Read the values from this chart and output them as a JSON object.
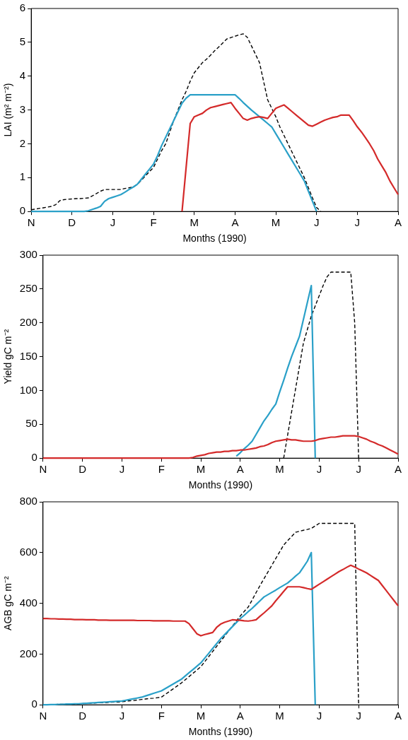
{
  "chart_data": [
    {
      "type": "line",
      "xlabel": "Months (1990)",
      "ylabel": "LAI (m² m⁻²)",
      "categories": [
        "N",
        null,
        null,
        null,
        null,
        null,
        null,
        null,
        null,
        null,
        "D",
        null,
        null,
        null,
        null,
        null,
        null,
        null,
        null,
        null,
        "J",
        null,
        null,
        null,
        null,
        null,
        null,
        null,
        null,
        null,
        "F",
        null,
        null,
        null,
        null,
        null,
        null,
        null,
        null,
        null,
        "M",
        null,
        null,
        null,
        null,
        null,
        null,
        null,
        null,
        null,
        "A",
        null,
        null,
        null,
        null,
        null,
        null,
        null,
        null,
        null,
        "M",
        null,
        null,
        null,
        null,
        null,
        null,
        null,
        null,
        null,
        "J",
        null,
        null,
        null,
        null,
        null,
        null,
        null,
        null,
        null,
        "J",
        null,
        null,
        null,
        null,
        null,
        null,
        null,
        null,
        null,
        "A"
      ],
      "ylim": [
        0,
        6
      ],
      "yticks": [
        0,
        1,
        2,
        3,
        4,
        5,
        6
      ],
      "grid": false,
      "legend": false,
      "series": [
        {
          "color": "#d42a2a",
          "line_style": "solid",
          "values": [
            null,
            null,
            null,
            null,
            null,
            null,
            null,
            null,
            null,
            null,
            null,
            null,
            null,
            null,
            null,
            null,
            null,
            null,
            null,
            null,
            null,
            null,
            null,
            null,
            null,
            null,
            null,
            null,
            null,
            null,
            null,
            null,
            null,
            null,
            null,
            null,
            null,
            0,
            1.3,
            2.6,
            2.8,
            2.85,
            2.9,
            3.0,
            3.07,
            3.1,
            3.13,
            3.16,
            3.19,
            3.22,
            3.05,
            2.9,
            2.75,
            2.7,
            2.75,
            2.78,
            2.8,
            2.78,
            2.75,
            2.9,
            3.05,
            3.1,
            3.15,
            3.05,
            2.95,
            2.85,
            2.75,
            2.65,
            2.55,
            2.52,
            2.58,
            2.64,
            2.7,
            2.74,
            2.78,
            2.8,
            2.85,
            2.85,
            2.85,
            2.68,
            2.5,
            2.35,
            2.18,
            2.0,
            1.8,
            1.55,
            1.35,
            1.15,
            0.9,
            0.7,
            0.5
          ]
        },
        {
          "color": "#2aa0c8",
          "line_style": "solid",
          "values": [
            0,
            0,
            0,
            0,
            0,
            0,
            0,
            0,
            0,
            0,
            0,
            0,
            0,
            0,
            0.02,
            0.06,
            0.1,
            0.15,
            0.3,
            0.38,
            0.42,
            0.46,
            0.5,
            0.57,
            0.65,
            0.72,
            0.8,
            0.95,
            1.1,
            1.25,
            1.4,
            1.65,
            1.95,
            2.2,
            2.45,
            2.7,
            2.95,
            3.2,
            3.35,
            3.45,
            3.45,
            3.45,
            3.45,
            3.45,
            3.45,
            3.45,
            3.45,
            3.45,
            3.45,
            3.45,
            3.45,
            3.34,
            3.22,
            3.11,
            3.0,
            2.9,
            2.8,
            2.7,
            2.6,
            2.5,
            2.3,
            2.1,
            1.9,
            1.7,
            1.5,
            1.3,
            1.1,
            0.9,
            0.6,
            0.3,
            0,
            null,
            null,
            null,
            null,
            null,
            null,
            null,
            null,
            null,
            null,
            null,
            null,
            null,
            null,
            null,
            null,
            null,
            null,
            null,
            null
          ]
        },
        {
          "color": "#000000",
          "line_style": "dashed",
          "values": [
            0.05,
            0.07,
            0.09,
            0.11,
            0.13,
            0.15,
            0.2,
            0.32,
            0.35,
            0.36,
            0.37,
            0.38,
            0.38,
            0.39,
            0.4,
            0.46,
            0.53,
            0.6,
            0.65,
            0.65,
            0.65,
            0.65,
            0.65,
            0.68,
            0.7,
            0.72,
            0.8,
            0.92,
            1.05,
            1.18,
            1.3,
            1.55,
            1.8,
            2.0,
            2.35,
            2.7,
            3.0,
            3.3,
            3.55,
            3.85,
            4.1,
            4.25,
            4.4,
            4.5,
            4.62,
            4.75,
            4.86,
            4.98,
            5.1,
            5.14,
            5.18,
            5.22,
            5.25,
            5.15,
            4.9,
            4.65,
            4.4,
            3.85,
            3.3,
            3.05,
            2.8,
            2.5,
            2.25,
            2.0,
            1.75,
            1.5,
            1.25,
            1.0,
            0.7,
            0.4,
            0.12,
            0,
            null,
            null,
            null,
            null,
            null,
            null,
            null,
            null,
            null,
            null,
            null,
            null,
            null,
            null,
            null,
            null,
            null,
            null,
            null
          ]
        }
      ]
    },
    {
      "type": "line",
      "xlabel": "Months (1990)",
      "ylabel": "Yield gC m⁻²",
      "categories": [
        "N",
        null,
        null,
        null,
        null,
        null,
        null,
        null,
        null,
        null,
        "D",
        null,
        null,
        null,
        null,
        null,
        null,
        null,
        null,
        null,
        "J",
        null,
        null,
        null,
        null,
        null,
        null,
        null,
        null,
        null,
        "F",
        null,
        null,
        null,
        null,
        null,
        null,
        null,
        null,
        null,
        "M",
        null,
        null,
        null,
        null,
        null,
        null,
        null,
        null,
        null,
        "A",
        null,
        null,
        null,
        null,
        null,
        null,
        null,
        null,
        null,
        "M",
        null,
        null,
        null,
        null,
        null,
        null,
        null,
        null,
        null,
        "J",
        null,
        null,
        null,
        null,
        null,
        null,
        null,
        null,
        null,
        "J",
        null,
        null,
        null,
        null,
        null,
        null,
        null,
        null,
        null,
        "A"
      ],
      "ylim": [
        0,
        300
      ],
      "yticks": [
        0,
        50,
        100,
        150,
        200,
        250,
        300
      ],
      "grid": false,
      "legend": false,
      "series": [
        {
          "color": "#d42a2a",
          "line_style": "solid",
          "values": [
            0,
            0,
            0,
            0,
            0,
            0,
            0,
            0,
            0,
            0,
            0,
            0,
            0,
            0,
            0,
            0,
            0,
            0,
            0,
            0,
            0,
            0,
            0,
            0,
            0,
            0,
            0,
            0,
            0,
            0,
            0,
            0,
            0,
            0,
            0,
            0,
            0,
            0,
            1,
            3,
            4,
            5,
            7,
            8,
            9,
            9,
            10,
            10,
            11,
            11,
            12,
            12,
            13,
            14,
            15,
            17,
            18,
            20,
            23,
            25,
            26,
            27,
            28,
            27,
            27,
            26,
            25,
            25,
            25,
            26,
            28,
            29,
            30,
            31,
            31,
            32,
            33,
            33,
            33,
            33,
            32,
            30,
            28,
            25,
            23,
            20,
            18,
            15,
            12,
            9,
            6
          ]
        },
        {
          "color": "#2aa0c8",
          "line_style": "solid",
          "values": [
            null,
            null,
            null,
            null,
            null,
            null,
            null,
            null,
            null,
            null,
            null,
            null,
            null,
            null,
            null,
            null,
            null,
            null,
            null,
            null,
            null,
            null,
            null,
            null,
            null,
            null,
            null,
            null,
            null,
            null,
            null,
            null,
            null,
            null,
            null,
            null,
            null,
            null,
            null,
            null,
            null,
            null,
            null,
            null,
            null,
            null,
            null,
            null,
            null,
            3,
            8,
            14,
            19,
            25,
            35,
            45,
            55,
            63,
            72,
            80,
            98,
            115,
            133,
            150,
            165,
            180,
            205,
            230,
            255,
            0,
            null,
            null,
            null,
            null,
            null,
            null,
            null,
            null,
            null,
            null,
            null,
            null,
            null,
            null,
            null,
            null,
            null,
            null,
            null,
            null,
            null
          ]
        },
        {
          "color": "#000000",
          "line_style": "dashed",
          "values": [
            null,
            null,
            null,
            null,
            null,
            null,
            null,
            null,
            null,
            null,
            null,
            null,
            null,
            null,
            null,
            null,
            null,
            null,
            null,
            null,
            null,
            null,
            null,
            null,
            null,
            null,
            null,
            null,
            null,
            null,
            null,
            null,
            null,
            null,
            null,
            null,
            null,
            null,
            null,
            null,
            null,
            null,
            null,
            null,
            null,
            null,
            null,
            null,
            null,
            null,
            null,
            null,
            null,
            null,
            null,
            null,
            null,
            null,
            null,
            null,
            null,
            0,
            34,
            68,
            102,
            136,
            170,
            190,
            210,
            225,
            240,
            255,
            268,
            275,
            275,
            275,
            275,
            275,
            275,
            200,
            0,
            null,
            null,
            null,
            null,
            null,
            null,
            null,
            null,
            null,
            null
          ]
        }
      ]
    },
    {
      "type": "line",
      "xlabel": "Months (1990)",
      "ylabel": "AGB gC m⁻²",
      "categories": [
        "N",
        null,
        null,
        null,
        null,
        null,
        null,
        null,
        null,
        null,
        "D",
        null,
        null,
        null,
        null,
        null,
        null,
        null,
        null,
        null,
        "J",
        null,
        null,
        null,
        null,
        null,
        null,
        null,
        null,
        null,
        "F",
        null,
        null,
        null,
        null,
        null,
        null,
        null,
        null,
        null,
        "M",
        null,
        null,
        null,
        null,
        null,
        null,
        null,
        null,
        null,
        "A",
        null,
        null,
        null,
        null,
        null,
        null,
        null,
        null,
        null,
        "M",
        null,
        null,
        null,
        null,
        null,
        null,
        null,
        null,
        null,
        "J",
        null,
        null,
        null,
        null,
        null,
        null,
        null,
        null,
        null,
        "J",
        null,
        null,
        null,
        null,
        null,
        null,
        null,
        null,
        null,
        "A"
      ],
      "ylim": [
        0,
        800
      ],
      "yticks": [
        0,
        200,
        400,
        600,
        800
      ],
      "grid": false,
      "legend": false,
      "series": [
        {
          "color": "#d42a2a",
          "line_style": "solid",
          "values": [
            340,
            340,
            339,
            339,
            338,
            338,
            337,
            337,
            336,
            336,
            336,
            335,
            335,
            335,
            334,
            334,
            334,
            333,
            333,
            333,
            333,
            333,
            333,
            333,
            332,
            332,
            332,
            332,
            331,
            331,
            331,
            331,
            331,
            330,
            330,
            330,
            330,
            320,
            300,
            280,
            272,
            277,
            281,
            285,
            305,
            318,
            325,
            330,
            335,
            334,
            333,
            331,
            330,
            332,
            335,
            349,
            362,
            376,
            390,
            410,
            428,
            447,
            465,
            465,
            465,
            465,
            462,
            458,
            455,
            465,
            475,
            485,
            495,
            505,
            515,
            525,
            533,
            542,
            550,
            543,
            535,
            528,
            520,
            510,
            500,
            490,
            470,
            450,
            430,
            410,
            390
          ]
        },
        {
          "color": "#2aa0c8",
          "line_style": "solid",
          "values": [
            0,
            0,
            1,
            1,
            2,
            2,
            3,
            3,
            4,
            4,
            5,
            6,
            7,
            8,
            9,
            10,
            11,
            12,
            13,
            14,
            15,
            18,
            21,
            24,
            27,
            30,
            35,
            40,
            45,
            50,
            55,
            64,
            73,
            82,
            91,
            100,
            113,
            126,
            139,
            152,
            165,
            184,
            203,
            222,
            241,
            260,
            276,
            292,
            308,
            324,
            340,
            353,
            367,
            380,
            395,
            410,
            425,
            434,
            443,
            452,
            462,
            471,
            480,
            493,
            507,
            520,
            543,
            566,
            600,
            0,
            null,
            null,
            null,
            null,
            null,
            null,
            null,
            null,
            null,
            null,
            null,
            null,
            null,
            null,
            null,
            null,
            null,
            null,
            null,
            null,
            null
          ]
        },
        {
          "color": "#000000",
          "line_style": "dashed",
          "values": [
            0,
            0,
            1,
            1,
            2,
            2,
            3,
            3,
            4,
            4,
            5,
            6,
            6,
            7,
            8,
            8,
            9,
            10,
            11,
            11,
            12,
            14,
            16,
            17,
            19,
            21,
            23,
            25,
            26,
            28,
            30,
            41,
            52,
            63,
            74,
            85,
            98,
            111,
            124,
            137,
            150,
            170,
            190,
            210,
            230,
            250,
            270,
            290,
            310,
            330,
            350,
            368,
            385,
            413,
            442,
            470,
            497,
            523,
            550,
            577,
            603,
            630,
            647,
            663,
            680,
            684,
            688,
            691,
            695,
            705,
            715,
            715,
            715,
            715,
            715,
            715,
            715,
            715,
            715,
            715,
            0,
            null,
            null,
            null,
            null,
            null,
            null,
            null,
            null,
            null,
            null
          ]
        }
      ]
    }
  ]
}
